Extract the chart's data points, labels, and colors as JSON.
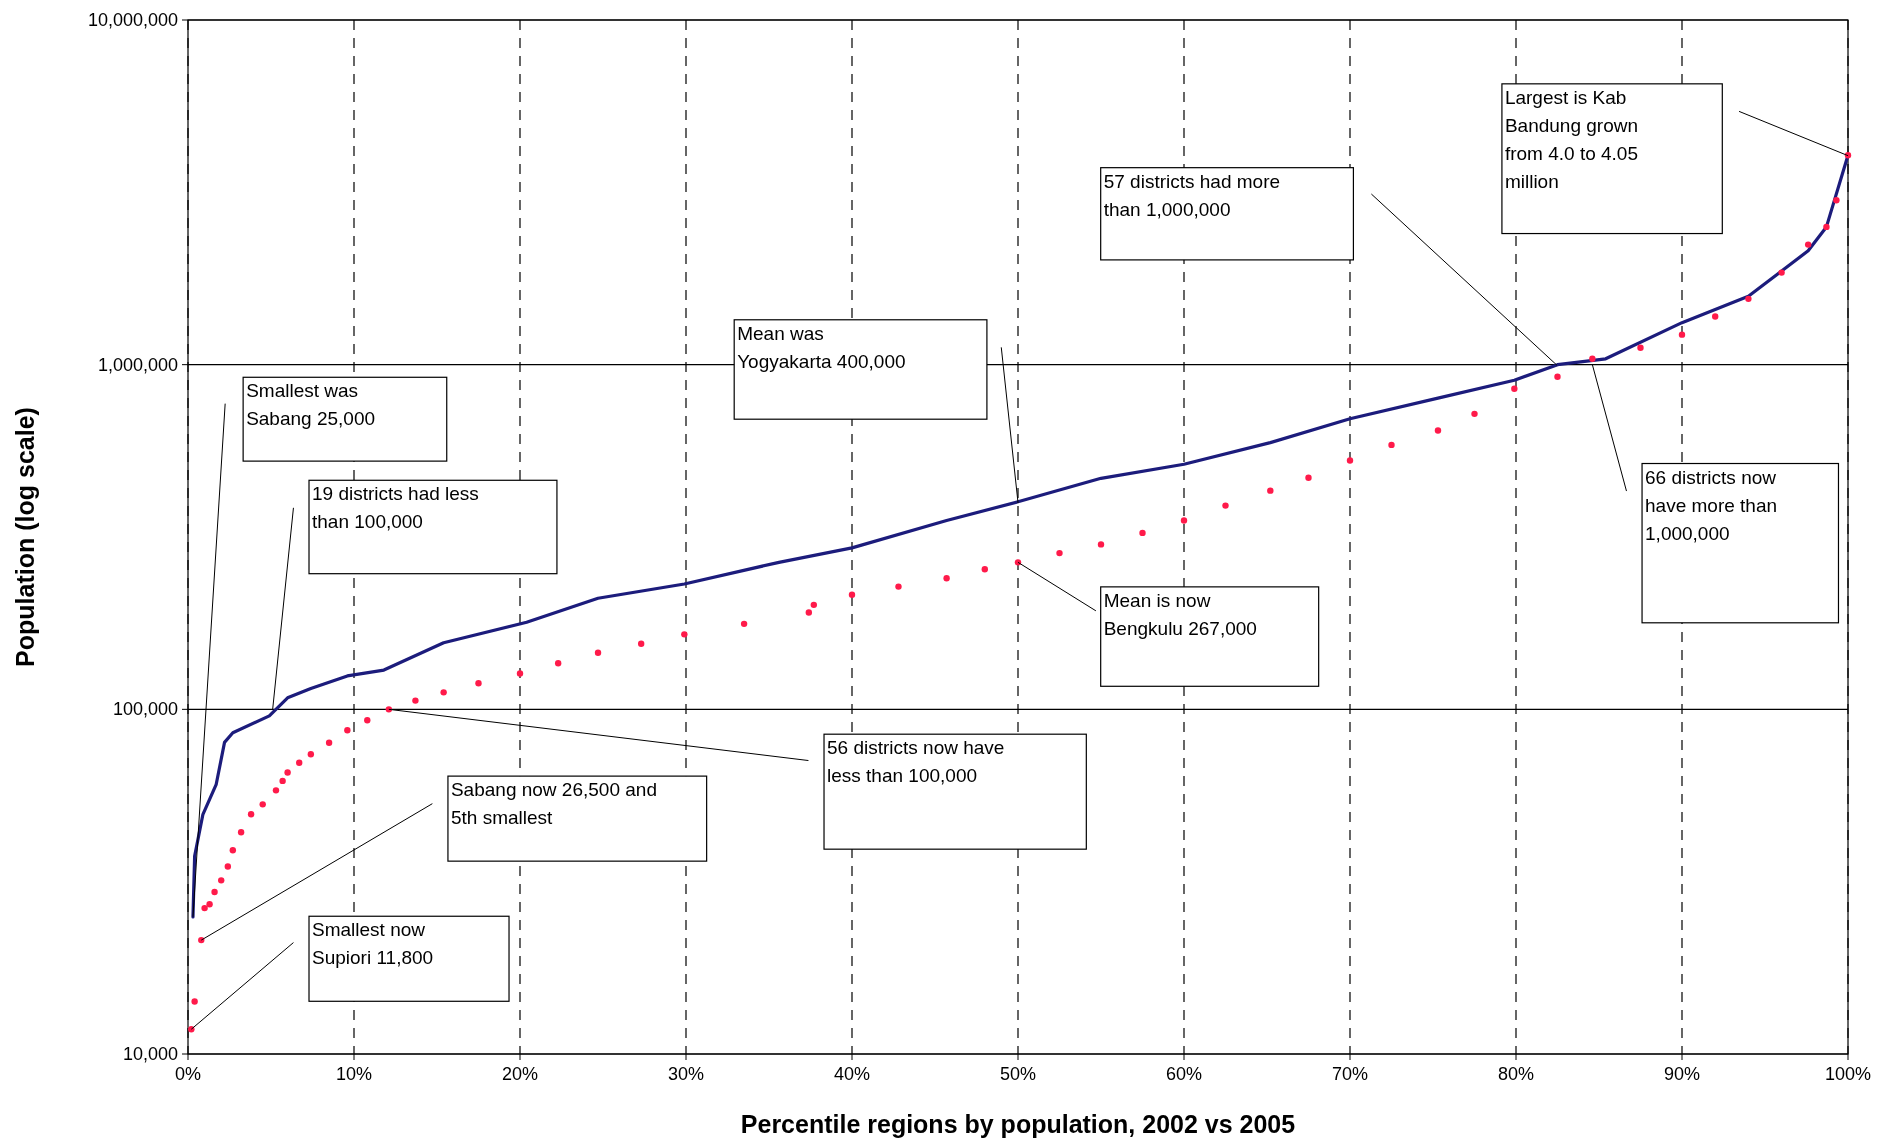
{
  "chart_data": {
    "type": "line",
    "xlabel": "Percentile regions by population, 2002 vs 2005",
    "ylabel": "Population (log scale)",
    "log": "y",
    "grid": true,
    "xlim": [
      0,
      100
    ],
    "xticks": [
      {
        "value": 0,
        "label": "0%"
      },
      {
        "value": 10,
        "label": "10%"
      },
      {
        "value": 20,
        "label": "20%"
      },
      {
        "value": 30,
        "label": "30%"
      },
      {
        "value": 40,
        "label": "40%"
      },
      {
        "value": 50,
        "label": "50%"
      },
      {
        "value": 60,
        "label": "60%"
      },
      {
        "value": 70,
        "label": "70%"
      },
      {
        "value": 80,
        "label": "80%"
      },
      {
        "value": 90,
        "label": "90%"
      },
      {
        "value": 100,
        "label": "100%"
      }
    ],
    "ylim": [
      10000,
      10000000
    ],
    "yticks": [
      {
        "value": 10000,
        "label": "10,000"
      },
      {
        "value": 100000,
        "label": "100,000"
      },
      {
        "value": 1000000,
        "label": "1,000,000"
      },
      {
        "value": 10000000,
        "label": "10,000,000"
      }
    ],
    "series": [
      {
        "color": "#1c1c7c",
        "x": [
          0.3,
          0.4,
          0.9,
          1.7,
          2.2,
          2.7,
          4.9,
          6,
          7.4,
          9.6,
          11.8,
          15.4,
          20.4,
          24.7,
          29.9,
          35.6,
          40,
          45.7,
          50,
          55,
          60,
          65.2,
          70,
          75.3,
          79.9,
          82.5,
          85.4,
          90,
          94,
          97.6,
          98.7,
          100
        ],
        "values": [
          25000,
          37500,
          49600,
          60600,
          80200,
          85500,
          95700,
          108000,
          115000,
          125000,
          130000,
          156000,
          179000,
          210000,
          231000,
          267000,
          294000,
          353000,
          400000,
          468000,
          514000,
          594000,
          697000,
          800000,
          901000,
          1000000,
          1040000,
          1324000,
          1580000,
          2140000,
          2510000,
          4050000
        ]
      },
      {
        "type": "scatter",
        "color": "#ff1a4a",
        "x": [
          0.2,
          0.4,
          0.8,
          1.0,
          1.3,
          1.6,
          2,
          2.4,
          2.7,
          3.2,
          3.8,
          4.5,
          5.3,
          5.7,
          6,
          6.7,
          7.4,
          8.5,
          9.6,
          10.8,
          12.1,
          13.7,
          15.4,
          17.5,
          20,
          22.3,
          24.7,
          27.3,
          29.9,
          33.5,
          37.4,
          37.7,
          40,
          42.8,
          45.7,
          48,
          50,
          52.5,
          55,
          57.5,
          60,
          62.5,
          65.2,
          67.5,
          70,
          72.5,
          75.3,
          77.5,
          79.9,
          82.5,
          84.6,
          87.5,
          90,
          92,
          94,
          96,
          97.6,
          98.7,
          99.3,
          100
        ],
        "values": [
          11800,
          14200,
          21400,
          26500,
          27200,
          29500,
          31900,
          35000,
          39000,
          44000,
          49600,
          53000,
          58200,
          62000,
          65600,
          70000,
          74100,
          80000,
          87000,
          93000,
          100000,
          106000,
          112000,
          119000,
          127000,
          136000,
          146000,
          155000,
          165000,
          177000,
          191000,
          201000,
          215000,
          227000,
          240000,
          255000,
          267000,
          284000,
          301000,
          325000,
          353000,
          390000,
          431000,
          470000,
          527000,
          585000,
          644000,
          720000,
          851000,
          922000,
          1040000,
          1120000,
          1222000,
          1380000,
          1552000,
          1850000,
          2230000,
          2510000,
          3000000,
          4050000
        ]
      }
    ],
    "annotations": [
      {
        "text": "Smallest was Sabang 25,000",
        "x": 0.3,
        "y": 25000
      },
      {
        "text": "19 districts had less than 100,000",
        "x": 5.1,
        "y": 100000
      },
      {
        "text": "Sabang now 26,500 and 5th smallest",
        "x": 0.8,
        "y": 21400
      },
      {
        "text": "Smallest now Supiori 11,800",
        "x": 0.2,
        "y": 11800
      },
      {
        "text": "56 districts now have less than 100,000",
        "x": 12.1,
        "y": 100000
      },
      "Mean was Yogyakarta 400,000",
      {
        "text": "Mean is now Bengkulu 267,000",
        "x": 50,
        "y": 267000
      },
      "57 districts had more than 1,000,000",
      {
        "text": "66 districts now have more than 1,000,000",
        "x": 84.6,
        "y": 1000000
      },
      "Largest is Kab Bandung grown from 4.0 to 4.05 million"
    ]
  }
}
